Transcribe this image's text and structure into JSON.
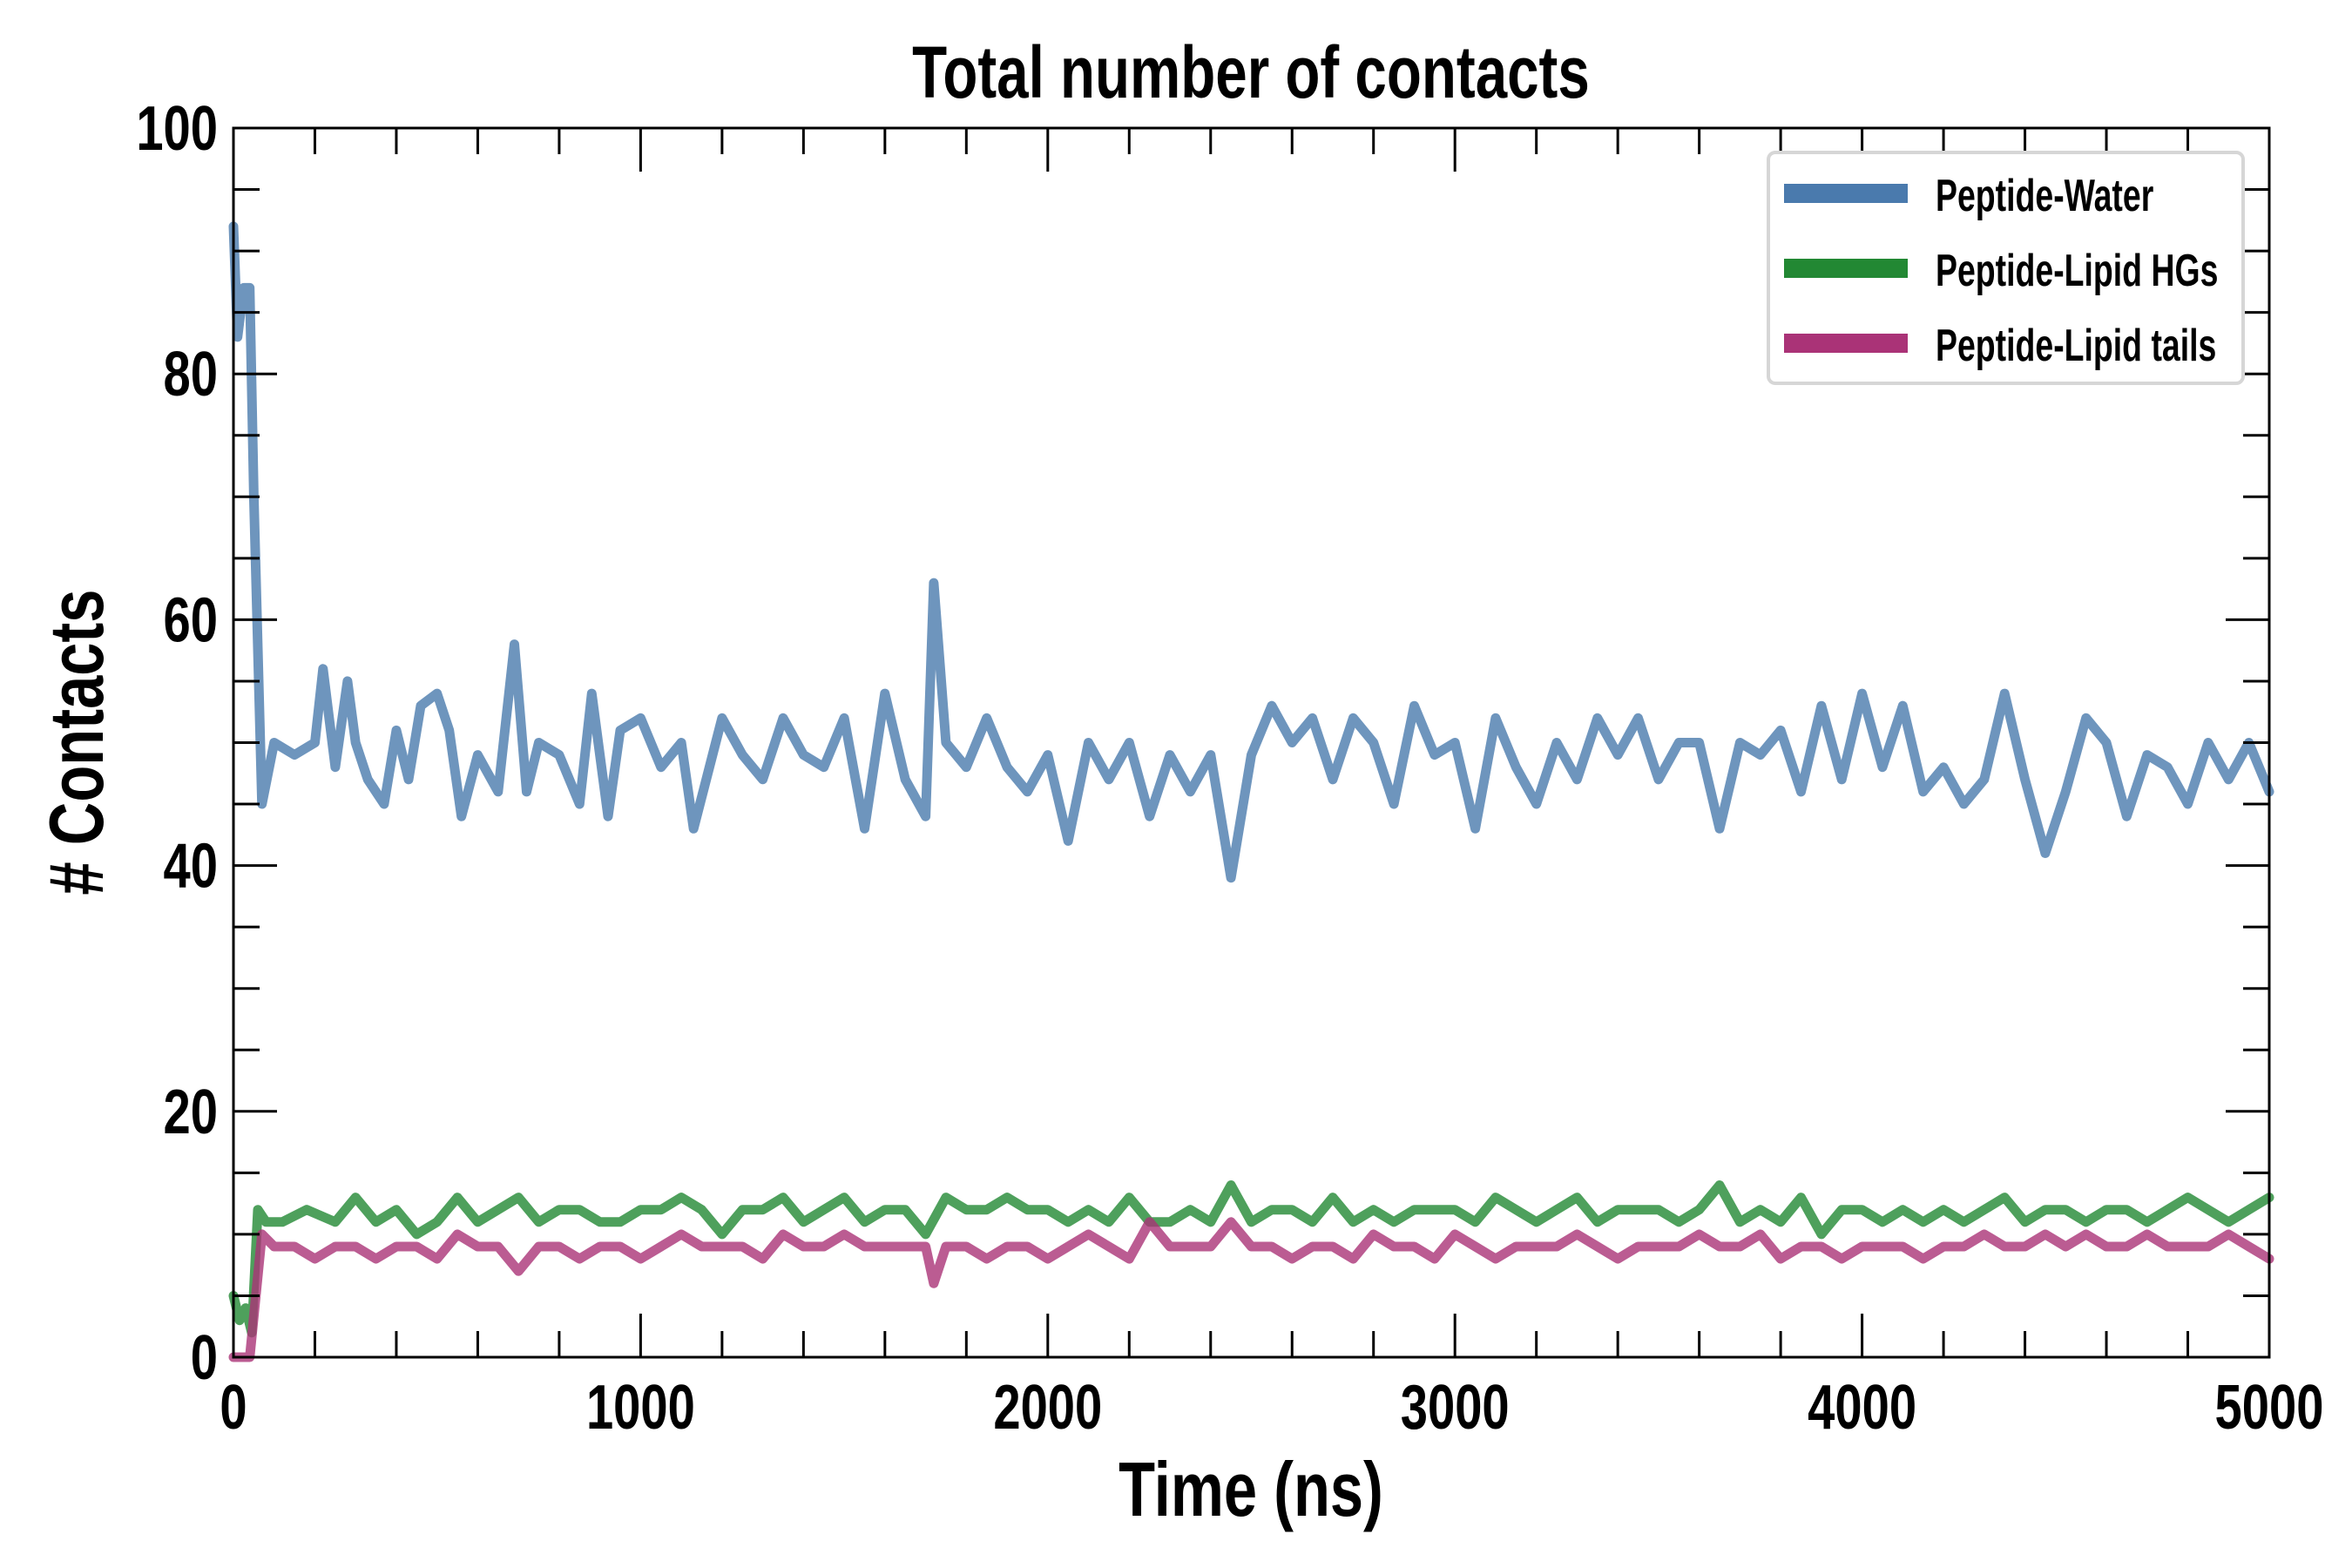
{
  "chart_data": {
    "type": "line",
    "title": "Total number of contacts",
    "xlabel": "Time (ns)",
    "ylabel": "# Contacts",
    "xlim": [
      0,
      5000
    ],
    "ylim": [
      0,
      100
    ],
    "xticks": [
      "0",
      "1000",
      "2000",
      "3000",
      "4000",
      "5000"
    ],
    "yticks": [
      "0",
      "20",
      "40",
      "60",
      "80",
      "100"
    ],
    "grid": false,
    "legend_position": "top-right",
    "series": [
      {
        "name": "Peptide-Water",
        "color": "#4a7aad",
        "x": [
          0,
          10,
          25,
          40,
          50,
          70,
          100,
          150,
          200,
          220,
          250,
          280,
          300,
          330,
          370,
          400,
          430,
          460,
          500,
          530,
          560,
          600,
          650,
          690,
          720,
          750,
          800,
          850,
          880,
          920,
          950,
          1000,
          1050,
          1100,
          1130,
          1200,
          1250,
          1300,
          1350,
          1400,
          1450,
          1500,
          1550,
          1600,
          1650,
          1700,
          1720,
          1750,
          1800,
          1850,
          1900,
          1950,
          2000,
          2050,
          2100,
          2150,
          2200,
          2250,
          2300,
          2350,
          2400,
          2450,
          2500,
          2550,
          2600,
          2650,
          2700,
          2750,
          2800,
          2850,
          2900,
          2950,
          3000,
          3050,
          3100,
          3150,
          3200,
          3250,
          3300,
          3350,
          3400,
          3450,
          3500,
          3550,
          3600,
          3650,
          3700,
          3750,
          3800,
          3850,
          3900,
          3950,
          4000,
          4050,
          4100,
          4150,
          4200,
          4250,
          4300,
          4350,
          4400,
          4450,
          4500,
          4550,
          4600,
          4650,
          4700,
          4750,
          4800,
          4850,
          4900,
          4950,
          5000
        ],
        "y": [
          92,
          83,
          87,
          87,
          70,
          45,
          50,
          49,
          50,
          56,
          48,
          55,
          50,
          47,
          45,
          51,
          47,
          53,
          54,
          51,
          44,
          49,
          46,
          58,
          46,
          50,
          49,
          45,
          54,
          44,
          51,
          52,
          48,
          50,
          43,
          52,
          49,
          47,
          52,
          49,
          48,
          52,
          43,
          54,
          47,
          44,
          63,
          50,
          48,
          52,
          48,
          46,
          49,
          42,
          50,
          47,
          50,
          44,
          49,
          46,
          49,
          39,
          49,
          53,
          50,
          52,
          47,
          52,
          50,
          45,
          53,
          49,
          50,
          43,
          52,
          48,
          45,
          50,
          47,
          52,
          49,
          52,
          47,
          50,
          50,
          43,
          50,
          49,
          51,
          46,
          53,
          47,
          54,
          48,
          53,
          46,
          48,
          45,
          47,
          54,
          47,
          41,
          46,
          52,
          50,
          44,
          49,
          48,
          45,
          50,
          47,
          50,
          46
        ]
      },
      {
        "name": "Peptide-Lipid HGs",
        "color": "#228833",
        "x": [
          0,
          15,
          30,
          45,
          60,
          80,
          120,
          180,
          250,
          300,
          350,
          400,
          450,
          500,
          550,
          600,
          650,
          700,
          750,
          800,
          850,
          900,
          950,
          1000,
          1050,
          1100,
          1150,
          1200,
          1250,
          1300,
          1350,
          1400,
          1450,
          1500,
          1550,
          1600,
          1650,
          1700,
          1750,
          1800,
          1850,
          1900,
          1950,
          2000,
          2050,
          2100,
          2150,
          2200,
          2250,
          2300,
          2350,
          2400,
          2450,
          2500,
          2550,
          2600,
          2650,
          2700,
          2750,
          2800,
          2850,
          2900,
          2950,
          3000,
          3050,
          3100,
          3150,
          3200,
          3250,
          3300,
          3350,
          3400,
          3450,
          3500,
          3550,
          3600,
          3650,
          3700,
          3750,
          3800,
          3850,
          3900,
          3950,
          4000,
          4050,
          4100,
          4150,
          4200,
          4250,
          4300,
          4350,
          4400,
          4450,
          4500,
          4550,
          4600,
          4650,
          4700,
          4750,
          4800,
          4850,
          4900,
          4950,
          5000
        ],
        "y": [
          5,
          3,
          4,
          2,
          12,
          11,
          11,
          12,
          11,
          13,
          11,
          12,
          10,
          11,
          13,
          11,
          12,
          13,
          11,
          12,
          12,
          11,
          11,
          12,
          12,
          13,
          12,
          10,
          12,
          12,
          13,
          11,
          12,
          13,
          11,
          12,
          12,
          10,
          13,
          12,
          12,
          13,
          12,
          12,
          11,
          12,
          11,
          13,
          11,
          11,
          12,
          11,
          14,
          11,
          12,
          12,
          11,
          13,
          11,
          12,
          11,
          12,
          12,
          12,
          11,
          13,
          12,
          11,
          12,
          13,
          11,
          12,
          12,
          12,
          11,
          12,
          14,
          11,
          12,
          11,
          13,
          10,
          12,
          12,
          11,
          12,
          11,
          12,
          11,
          12,
          13,
          11,
          12,
          12,
          11,
          12,
          12,
          11,
          12,
          13,
          12,
          11,
          12,
          13
        ]
      },
      {
        "name": "Peptide-Lipid tails",
        "color": "#aa3377",
        "x": [
          0,
          20,
          40,
          55,
          70,
          100,
          150,
          200,
          250,
          300,
          350,
          400,
          450,
          500,
          550,
          600,
          650,
          700,
          750,
          800,
          850,
          900,
          950,
          1000,
          1050,
          1100,
          1150,
          1200,
          1250,
          1300,
          1350,
          1400,
          1450,
          1500,
          1550,
          1600,
          1650,
          1700,
          1720,
          1750,
          1800,
          1850,
          1900,
          1950,
          2000,
          2050,
          2100,
          2150,
          2200,
          2250,
          2300,
          2350,
          2400,
          2450,
          2500,
          2550,
          2600,
          2650,
          2700,
          2750,
          2800,
          2850,
          2900,
          2950,
          3000,
          3050,
          3100,
          3150,
          3200,
          3250,
          3300,
          3350,
          3400,
          3450,
          3500,
          3550,
          3600,
          3650,
          3700,
          3750,
          3800,
          3850,
          3900,
          3950,
          4000,
          4050,
          4100,
          4150,
          4200,
          4250,
          4300,
          4350,
          4400,
          4450,
          4500,
          4550,
          4600,
          4650,
          4700,
          4750,
          4800,
          4850,
          4900,
          4950,
          5000
        ],
        "y": [
          0,
          0,
          0,
          5,
          10,
          9,
          9,
          8,
          9,
          9,
          8,
          9,
          9,
          8,
          10,
          9,
          9,
          7,
          9,
          9,
          8,
          9,
          9,
          8,
          9,
          10,
          9,
          9,
          9,
          8,
          10,
          9,
          9,
          10,
          9,
          9,
          9,
          9,
          6,
          9,
          9,
          8,
          9,
          9,
          8,
          9,
          10,
          9,
          8,
          11,
          9,
          9,
          9,
          11,
          9,
          9,
          8,
          9,
          9,
          8,
          10,
          9,
          9,
          8,
          10,
          9,
          8,
          9,
          9,
          9,
          10,
          9,
          8,
          9,
          9,
          9,
          10,
          9,
          9,
          10,
          8,
          9,
          9,
          8,
          9,
          9,
          9,
          8,
          9,
          9,
          10,
          9,
          9,
          10,
          9,
          10,
          9,
          9,
          10,
          9,
          9,
          9,
          10,
          9,
          8
        ]
      }
    ]
  }
}
